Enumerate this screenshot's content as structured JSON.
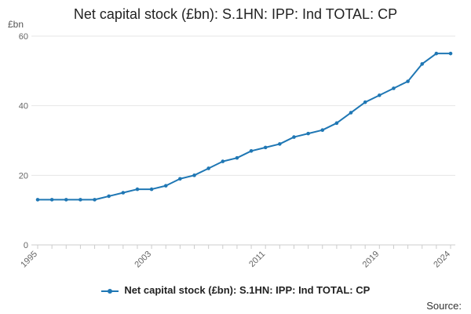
{
  "chart_data": {
    "type": "line",
    "title": "Net capital stock (£bn): S.1HN: IPP: Ind TOTAL: CP",
    "ylabel": "£bn",
    "xlabel": "",
    "x": [
      1995,
      1996,
      1997,
      1998,
      1999,
      2000,
      2001,
      2002,
      2003,
      2004,
      2005,
      2006,
      2007,
      2008,
      2009,
      2010,
      2011,
      2012,
      2013,
      2014,
      2015,
      2016,
      2017,
      2018,
      2019,
      2020,
      2021,
      2022,
      2023,
      2024
    ],
    "x_tick_labels": [
      "1995",
      "2003",
      "2011",
      "2019",
      "2024"
    ],
    "x_ticks": [
      1995,
      2003,
      2011,
      2019,
      2024
    ],
    "ylim": [
      0,
      60
    ],
    "y_ticks": [
      0,
      20,
      40,
      60
    ],
    "series": [
      {
        "name": "Net capital stock (£bn): S.1HN: IPP: Ind TOTAL: CP",
        "color": "#1f77b4",
        "values": [
          13,
          13,
          13,
          13,
          13,
          14,
          15,
          16,
          16,
          17,
          19,
          20,
          22,
          24,
          25,
          27,
          28,
          29,
          31,
          32,
          33,
          35,
          38,
          41,
          43,
          45,
          47,
          52,
          55,
          55
        ]
      }
    ],
    "grid": "horizontal",
    "legend_position": "bottom-center",
    "source_label": "Source:"
  }
}
